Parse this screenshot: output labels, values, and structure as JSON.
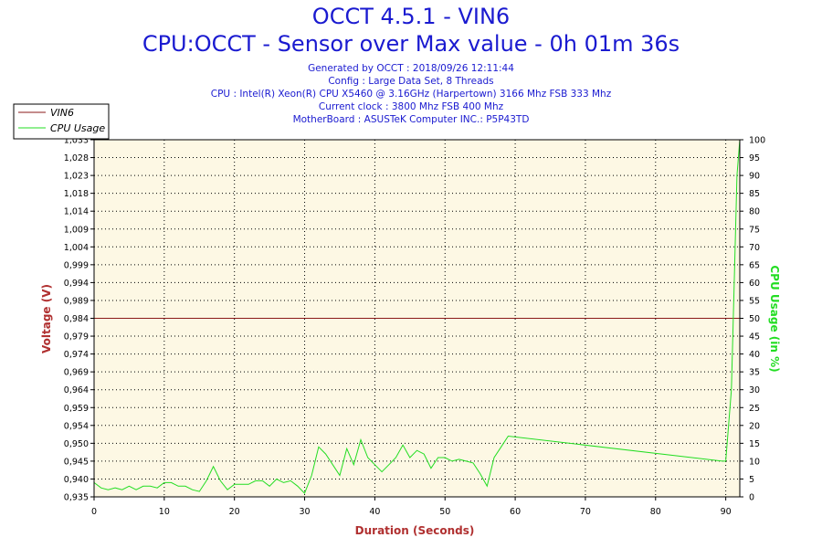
{
  "header": {
    "title": "OCCT 4.5.1 - VIN6",
    "subtitle": "CPU:OCCT - Sensor over Max value - 0h 01m 36s",
    "info_lines": [
      "Generated by OCCT : 2018/09/26 12:11:44",
      "Config : Large Data Set, 8 Threads",
      "CPU : Intel(R) Xeon(R) CPU X5460 @ 3.16GHz (Harpertown) 3166 Mhz FSB 333 Mhz",
      "Current clock : 3800 Mhz FSB 400 Mhz",
      "MotherBoard : ASUSTeK Computer INC.: P5P43TD"
    ]
  },
  "chart_data": {
    "type": "line",
    "xlabel": "Duration (Seconds)",
    "ylabel_left": "Voltage (V)",
    "ylabel_right": "CPU Usage (in %)",
    "xlim": [
      0,
      92
    ],
    "ylim_left": [
      0.935,
      1.033
    ],
    "ylim_right": [
      0,
      100
    ],
    "x_ticks": [
      0,
      10,
      20,
      30,
      40,
      50,
      60,
      70,
      80,
      90
    ],
    "y_ticks_left": [
      "1,033",
      "1,028",
      "1,023",
      "1,018",
      "1,014",
      "1,009",
      "1,004",
      "0,999",
      "0,994",
      "0,989",
      "0,984",
      "0,979",
      "0,974",
      "0,969",
      "0,964",
      "0,959",
      "0,954",
      "0,950",
      "0,945",
      "0,940",
      "0,935"
    ],
    "y_ticks_right": [
      100,
      95,
      90,
      85,
      80,
      75,
      70,
      65,
      60,
      55,
      50,
      45,
      40,
      35,
      30,
      25,
      20,
      15,
      10,
      5,
      0
    ],
    "grid": true,
    "legend_position": "top-left",
    "series": [
      {
        "name": "VIN6",
        "axis": "left",
        "color": "#8b1a1a",
        "x": [
          0,
          92
        ],
        "y": [
          0.984,
          0.984
        ]
      },
      {
        "name": "CPU Usage",
        "axis": "right",
        "color": "#22dd22",
        "x": [
          0,
          1,
          2,
          3,
          4,
          5,
          6,
          7,
          8,
          9,
          10,
          11,
          12,
          13,
          14,
          15,
          16,
          17,
          18,
          19,
          20,
          21,
          22,
          23,
          24,
          25,
          26,
          27,
          28,
          29,
          30,
          31,
          32,
          33,
          34,
          35,
          36,
          37,
          38,
          39,
          40,
          41,
          42,
          43,
          44,
          45,
          46,
          47,
          48,
          49,
          50,
          51,
          52,
          53,
          54,
          55,
          56,
          57,
          58,
          59,
          89.5,
          90,
          90.8,
          91.2,
          91.6,
          92
        ],
        "y": [
          4,
          2.5,
          2,
          2.5,
          2,
          3,
          2,
          3,
          3,
          2.5,
          4,
          4,
          3,
          3,
          2,
          1.5,
          4.5,
          8.5,
          4.5,
          2,
          3.5,
          3.5,
          3.5,
          4.5,
          4.5,
          3,
          5,
          4,
          4.5,
          3,
          1,
          6,
          14,
          12,
          9,
          6,
          13.5,
          9,
          16,
          11,
          9,
          7,
          9,
          11,
          14.5,
          11,
          13,
          12,
          8,
          11,
          11,
          10,
          10.5,
          10,
          9.5,
          6.5,
          3,
          11,
          14,
          17,
          10,
          10,
          30,
          60,
          90,
          100
        ]
      }
    ]
  }
}
